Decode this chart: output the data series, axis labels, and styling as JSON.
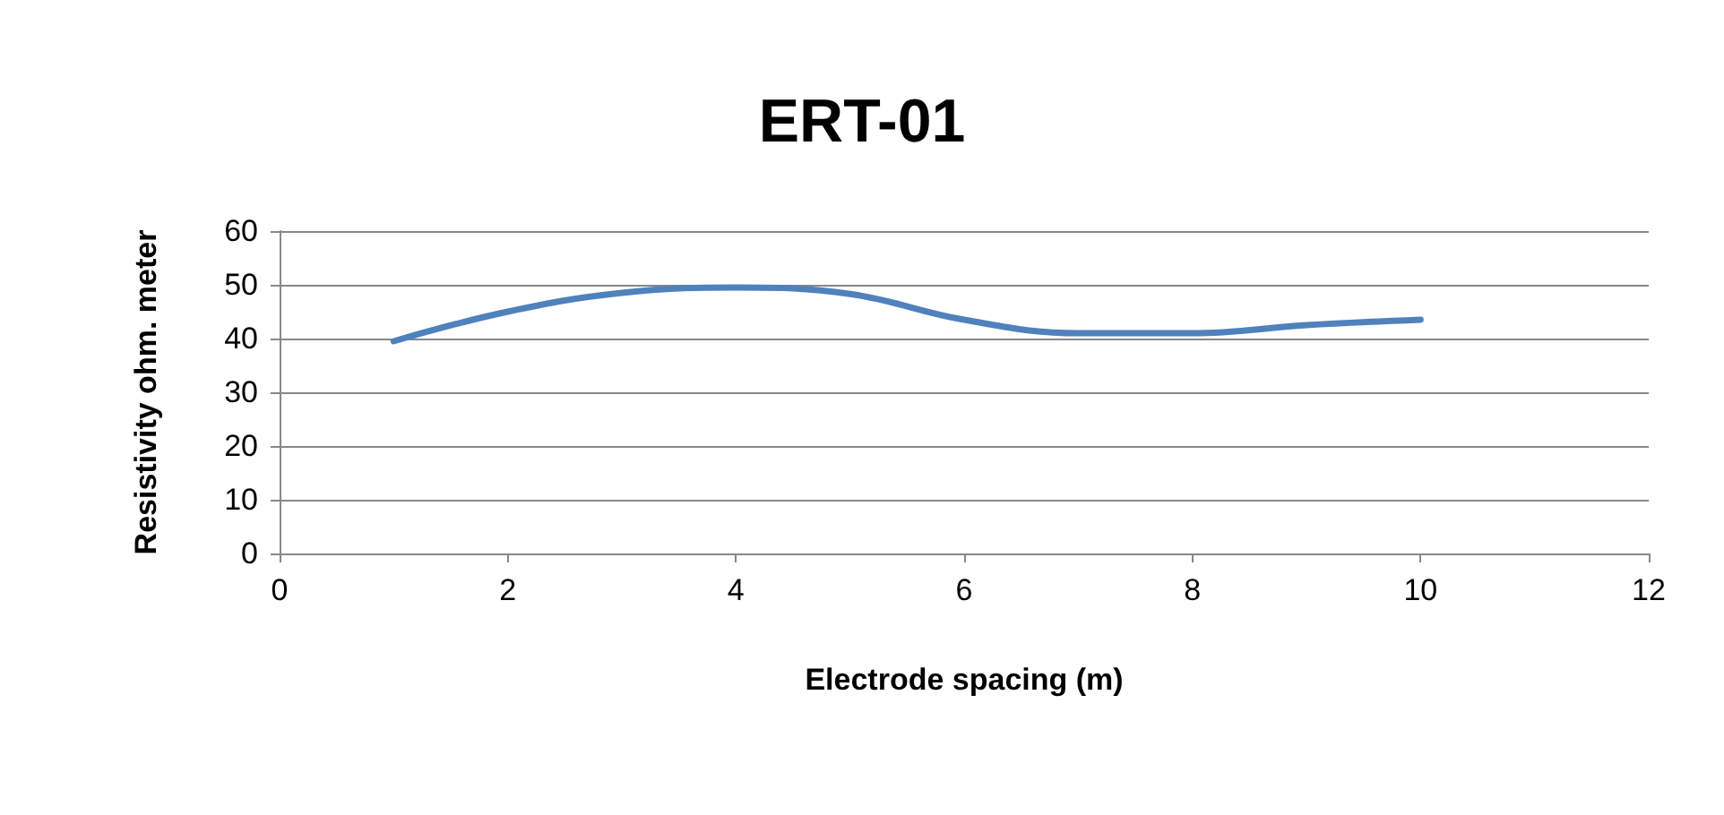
{
  "chart_data": {
    "type": "line",
    "title": "ERT-01",
    "xlabel": "Electrode spacing (m)",
    "ylabel": "Resistivity ohm. meter",
    "x": [
      1,
      2,
      3,
      4,
      5,
      6,
      7,
      8,
      9,
      10
    ],
    "series": [
      {
        "color": "#4f81bd",
        "values": [
          39.5,
          45,
          48.5,
          49.5,
          48.3,
          43.5,
          41,
          41,
          42.5,
          43.5
        ]
      }
    ],
    "xlim": [
      0,
      12
    ],
    "xticks": [
      0,
      2,
      4,
      6,
      8,
      10,
      12
    ],
    "ylim": [
      0,
      60
    ],
    "yticks": [
      0,
      10,
      20,
      30,
      40,
      50,
      60
    ],
    "grid": "y",
    "marker": "none",
    "line_style": "solid"
  }
}
